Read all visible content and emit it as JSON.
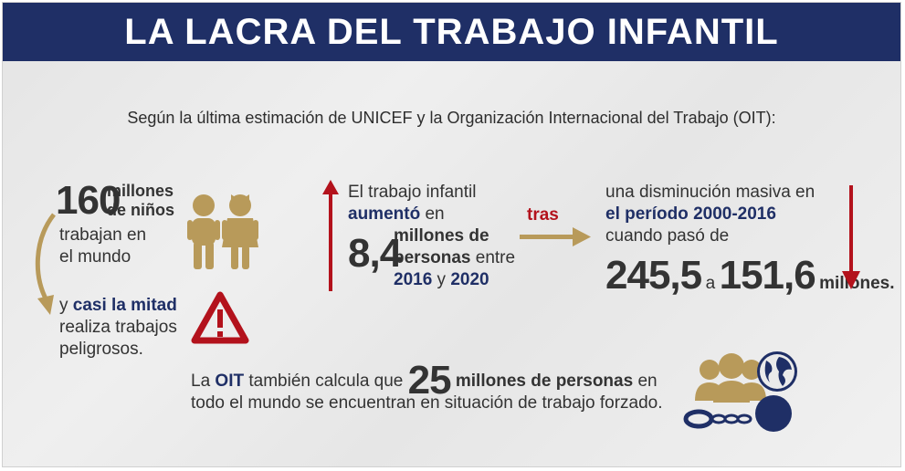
{
  "title": "LA LACRA DEL TRABAJO INFANTIL",
  "intro": "Según la última estimación de UNICEF y la Organización Internacional del Trabajo (OIT):",
  "block1": {
    "number": "160",
    "unit_line1": "millones",
    "unit_line2": "de niños",
    "rest_line1": "trabajan en",
    "rest_line2": "el mundo",
    "half_prefix": "y ",
    "half_highlight": "casi la mitad",
    "half_line2": "realiza trabajos",
    "half_line3": "peligrosos."
  },
  "block2": {
    "line1": "El trabajo infantil",
    "highlight": "aumentó",
    "after_highlight": " en",
    "number": "8,4",
    "unit_line1": "millones de",
    "unit_line2_bold": "personas",
    "unit_line2_rest": " entre",
    "year_from": "2016",
    "connector": " y ",
    "year_to": "2020"
  },
  "connector_word": "tras",
  "block3": {
    "line1": "una disminución masiva en",
    "period_prefix": "el período ",
    "period": "2000-2016",
    "line3": "cuando pasó de",
    "from_value": "245,5",
    "mid": "a",
    "to_value": "151,6",
    "suffix": "millones."
  },
  "bottom": {
    "prefix": "La ",
    "oit": "OIT",
    "middle": " también calcula que ",
    "number": "25",
    "unit": " millones de personas",
    "suffix": " en",
    "line2": "todo el mundo se encuentran en situación de trabajo forzado."
  },
  "colors": {
    "navy": "#1f2f66",
    "red": "#b3121c",
    "gold": "#b89a5a",
    "text": "#333333"
  },
  "icons": [
    "children-icon",
    "warning-icon",
    "up-arrow-icon",
    "right-arrow-icon",
    "down-arrow-icon",
    "forced-labor-icon"
  ]
}
